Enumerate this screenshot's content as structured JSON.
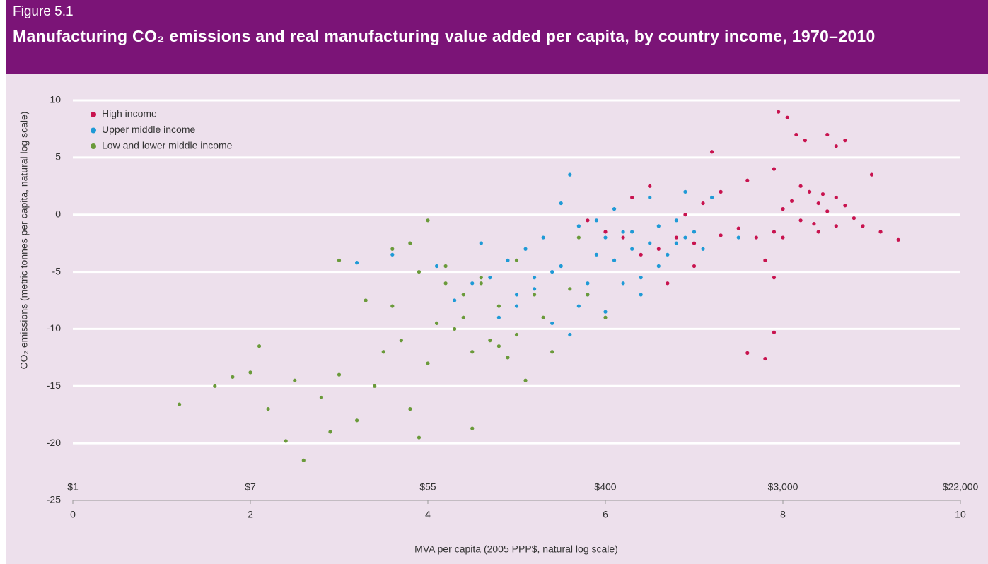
{
  "chart_data": {
    "type": "scatter",
    "figure_label": "Figure 5.1",
    "title": "Manufacturing CO₂ emissions and real manufacturing value added per capita, by country income, 1970–2010",
    "xlabel": "MVA per capita (2005 PPP$, natural log scale)",
    "ylabel": "CO₂ emissions (metric tonnes per capita, natural log scale)",
    "xlim": [
      0,
      10
    ],
    "xticks": [
      0,
      2,
      4,
      6,
      8,
      10
    ],
    "xticks_dollar": [
      {
        "value": 0,
        "label": "$1"
      },
      {
        "value": 2,
        "label": "$7"
      },
      {
        "value": 4,
        "label": "$55"
      },
      {
        "value": 6,
        "label": "$400"
      },
      {
        "value": 8,
        "label": "$3,000"
      },
      {
        "value": 10,
        "label": "$22,000"
      }
    ],
    "ylim": [
      -25,
      10
    ],
    "yticks": [
      10,
      5,
      0,
      -5,
      -10,
      -15,
      -20,
      -25
    ],
    "grid": true,
    "legend": "upper left",
    "series": [
      {
        "name": "High income",
        "color": "#c8134f",
        "x": [
          8.0,
          8.1,
          8.2,
          8.3,
          8.4,
          8.5,
          8.6,
          8.7,
          8.8,
          8.0,
          8.2,
          8.4,
          8.6,
          8.9,
          9.1,
          9.3,
          7.9,
          7.7,
          7.5,
          7.3,
          7.0,
          6.8,
          6.6,
          6.4,
          6.2,
          6.0,
          5.8,
          7.95,
          8.05,
          8.15,
          8.25,
          8.6,
          8.7,
          8.5,
          7.9,
          7.6,
          7.3,
          7.1,
          6.9,
          6.5,
          6.3,
          7.8,
          7.9,
          7.6,
          7.8,
          7.9,
          9.0,
          8.35,
          6.7,
          7.0,
          8.45,
          7.2
        ],
        "values": [
          0.5,
          1.2,
          -0.5,
          2.0,
          1.0,
          0.3,
          -1.0,
          0.8,
          -0.3,
          -2.0,
          2.5,
          -1.5,
          1.5,
          -1.0,
          -1.5,
          -2.2,
          -1.5,
          -2.0,
          -1.2,
          -1.8,
          -2.5,
          -2.0,
          -3.0,
          -3.5,
          -2.0,
          -1.5,
          -0.5,
          9.0,
          8.5,
          7.0,
          6.5,
          6.0,
          6.5,
          7.0,
          4.0,
          3.0,
          2.0,
          1.0,
          0.0,
          2.5,
          1.5,
          -4.0,
          -5.5,
          -12.1,
          -12.6,
          -10.3,
          3.5,
          -0.8,
          -6.0,
          -4.5,
          1.8,
          5.5
        ]
      },
      {
        "name": "Upper middle income",
        "color": "#1f9ad6",
        "x": [
          3.2,
          3.6,
          4.1,
          4.3,
          4.5,
          4.7,
          4.9,
          5.0,
          5.1,
          5.2,
          5.3,
          5.4,
          5.5,
          5.6,
          5.7,
          5.8,
          5.9,
          6.0,
          6.1,
          6.2,
          6.3,
          6.4,
          6.5,
          6.6,
          6.7,
          6.8,
          6.9,
          7.0,
          7.1,
          7.2,
          5.4,
          5.6,
          5.8,
          6.0,
          6.2,
          6.4,
          6.6,
          6.8,
          5.0,
          4.6,
          5.5,
          5.9,
          6.5,
          7.5,
          6.9,
          4.8,
          5.2,
          6.1,
          5.7,
          6.3
        ],
        "values": [
          -4.2,
          -3.5,
          -4.5,
          -7.5,
          -6.0,
          -5.5,
          -4.0,
          -8.0,
          -3.0,
          -6.5,
          -2.0,
          -5.0,
          -4.5,
          3.5,
          -1.0,
          -6.0,
          -3.5,
          -2.0,
          -4.0,
          -1.5,
          -3.0,
          -5.5,
          -2.5,
          -1.0,
          -3.5,
          -0.5,
          -2.0,
          -1.5,
          -3.0,
          1.5,
          -9.5,
          -10.5,
          -7.0,
          -8.5,
          -6.0,
          -7.0,
          -4.5,
          -2.5,
          -7.0,
          -2.5,
          1.0,
          -0.5,
          1.5,
          -2.0,
          2.0,
          -9.0,
          -5.5,
          0.5,
          -8.0,
          -1.5
        ]
      },
      {
        "name": "Low and lower middle income",
        "color": "#6a9a3a",
        "x": [
          1.2,
          1.6,
          1.8,
          2.0,
          2.2,
          2.4,
          2.5,
          2.6,
          2.8,
          3.0,
          3.0,
          3.2,
          3.3,
          3.5,
          3.6,
          3.7,
          3.8,
          3.9,
          4.0,
          4.1,
          4.2,
          4.3,
          4.4,
          4.5,
          4.6,
          4.7,
          4.8,
          4.9,
          5.0,
          5.1,
          5.2,
          5.3,
          5.4,
          5.6,
          5.8,
          6.0,
          3.4,
          3.6,
          3.8,
          4.0,
          4.2,
          4.4,
          4.6,
          4.8,
          5.0,
          2.1,
          2.9,
          3.9,
          4.5,
          5.7
        ],
        "values": [
          -16.6,
          -15.0,
          -14.2,
          -13.8,
          -17.0,
          -19.8,
          -14.5,
          -21.5,
          -16.0,
          -14.0,
          -4.0,
          -18.0,
          -7.5,
          -12.0,
          -3.0,
          -11.0,
          -17.0,
          -5.0,
          -13.0,
          -9.5,
          -6.0,
          -10.0,
          -7.0,
          -12.0,
          -5.5,
          -11.0,
          -8.0,
          -12.5,
          -10.5,
          -14.5,
          -7.0,
          -9.0,
          -12.0,
          -6.5,
          -7.0,
          -9.0,
          -15.0,
          -8.0,
          -2.5,
          -0.5,
          -4.5,
          -9.0,
          -6.0,
          -11.5,
          -4.0,
          -11.5,
          -19.0,
          -19.5,
          -18.7,
          -2.0
        ]
      }
    ]
  }
}
